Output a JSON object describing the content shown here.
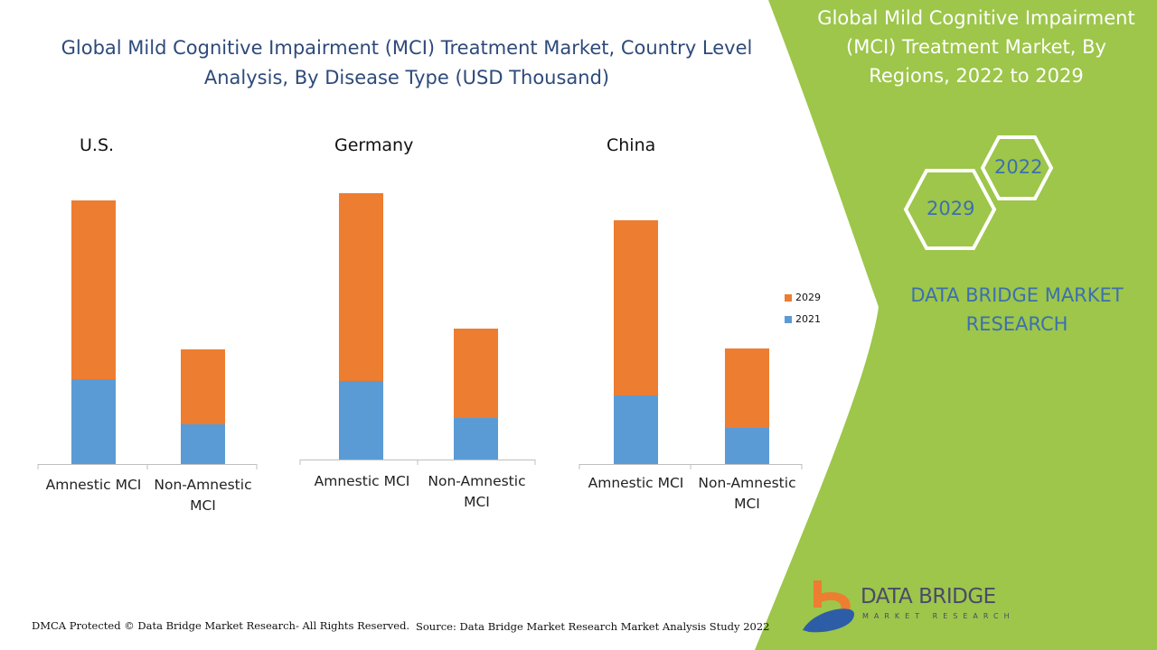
{
  "title": "Global Mild Cognitive Impairment (MCI) Treatment Market, Country Level Analysis, By Disease Type (USD Thousand)",
  "side_panel": {
    "title": "Global Mild Cognitive Impairment (MCI) Treatment Market, By Regions, 2022 to 2029",
    "hex_years": [
      "2022",
      "2029"
    ],
    "brand": "DATA BRIDGE MARKET RESEARCH",
    "logo_text": "DATA BRIDGE",
    "logo_sub": "MARKET RESEARCH",
    "color": "#9dc64a"
  },
  "footer": {
    "left": "DMCA Protected © Data Bridge Market Research- All Rights Reserved.",
    "right": "Source: Data Bridge Market Research Market Analysis Study 2022"
  },
  "legend": [
    "2029",
    "2021"
  ],
  "chart_data": [
    {
      "type": "bar",
      "stacked": true,
      "title": "U.S.",
      "categories": [
        "Amnestic MCI",
        "Non-Amnestic MCI"
      ],
      "series": [
        {
          "name": "2021",
          "color": "#5b9bd5",
          "values": [
            94,
            44
          ]
        },
        {
          "name": "2029",
          "color": "#ed7d31",
          "values": [
            198,
            83
          ]
        }
      ]
    },
    {
      "type": "bar",
      "stacked": true,
      "title": "Germany",
      "categories": [
        "Amnestic MCI",
        "Non-Amnestic MCI"
      ],
      "series": [
        {
          "name": "2021",
          "color": "#5b9bd5",
          "values": [
            87,
            46
          ]
        },
        {
          "name": "2029",
          "color": "#ed7d31",
          "values": [
            208,
            99
          ]
        }
      ]
    },
    {
      "type": "bar",
      "stacked": true,
      "title": "China",
      "categories": [
        "Amnestic MCI",
        "Non-Amnestic MCI"
      ],
      "series": [
        {
          "name": "2021",
          "color": "#5b9bd5",
          "values": [
            76,
            40
          ]
        },
        {
          "name": "2029",
          "color": "#ed7d31",
          "values": [
            194,
            88
          ]
        }
      ]
    }
  ]
}
